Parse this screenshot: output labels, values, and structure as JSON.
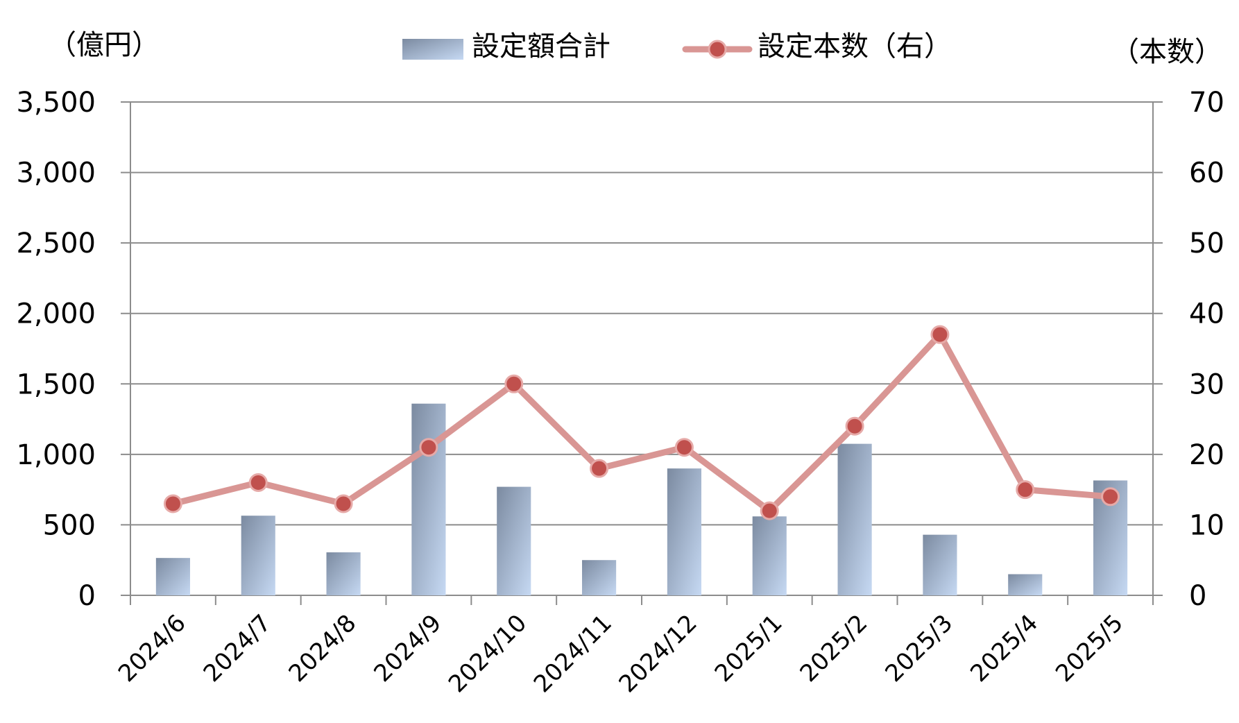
{
  "chart_data": {
    "type": "bar",
    "categories": [
      "2024/6",
      "2024/7",
      "2024/8",
      "2024/9",
      "2024/10",
      "2024/11",
      "2024/12",
      "2025/1",
      "2025/2",
      "2025/3",
      "2025/4",
      "2025/5"
    ],
    "series": [
      {
        "name": "設定額合計",
        "type": "bar",
        "axis": "left",
        "values": [
          265,
          565,
          305,
          1360,
          770,
          250,
          900,
          560,
          1075,
          430,
          150,
          815
        ]
      },
      {
        "name": "設定本数（右）",
        "type": "line",
        "axis": "right",
        "values": [
          13,
          16,
          13,
          21,
          30,
          18,
          21,
          12,
          24,
          37,
          15,
          14
        ]
      }
    ],
    "left_axis": {
      "unit_label": "（億円）",
      "ylim": [
        0,
        3500
      ],
      "ticks": [
        "0",
        "500",
        "1,000",
        "1,500",
        "2,000",
        "2,500",
        "3,000",
        "3,500"
      ]
    },
    "right_axis": {
      "unit_label": "（本数）",
      "ylim": [
        0,
        70
      ],
      "ticks": [
        "0",
        "10",
        "20",
        "30",
        "40",
        "50",
        "60",
        "70"
      ]
    },
    "grid": true,
    "legend_position": "top-center",
    "colors": {
      "bar_dark": "#7b8aa0",
      "bar_light": "#c6d9f3",
      "line": "#d99694",
      "marker_fill": "#c0504d",
      "grid": "#8c8c8c"
    }
  }
}
